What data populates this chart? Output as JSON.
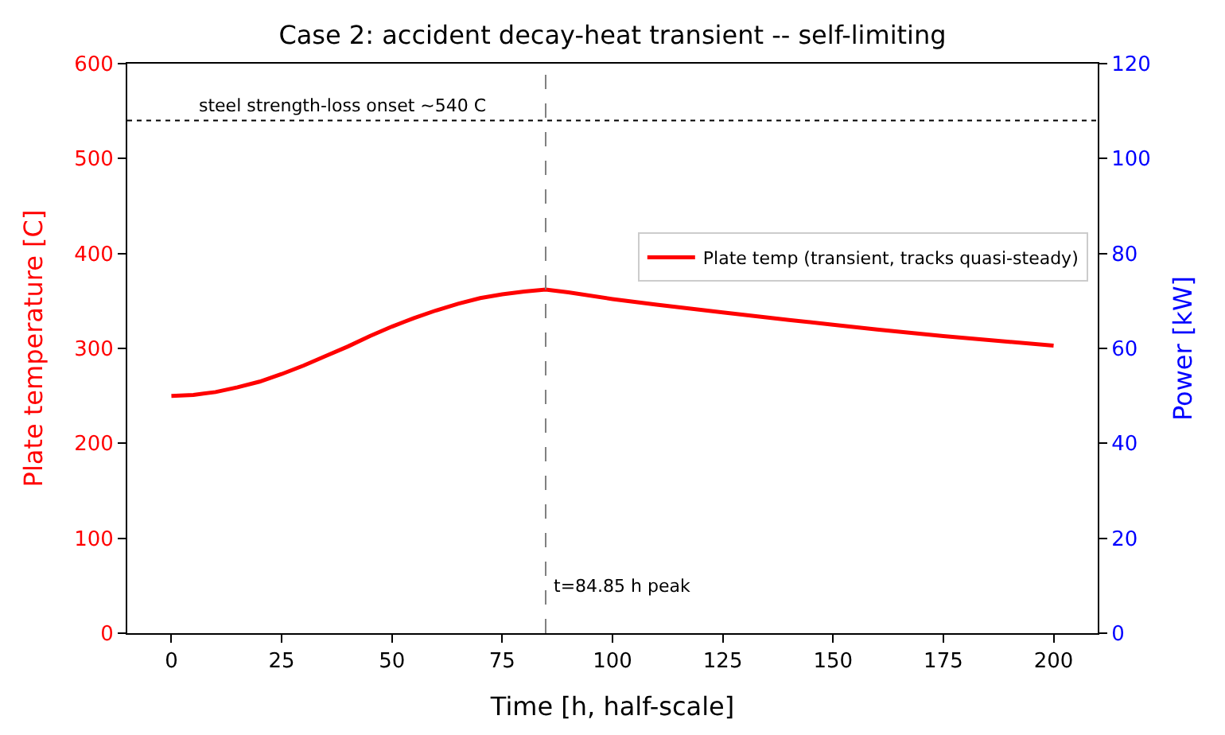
{
  "chart_data": {
    "type": "line",
    "title": "Case 2: accident decay-heat transient -- self-limiting",
    "xlabel": "Time [h, half-scale]",
    "ylabel": "Plate temperature [C]",
    "y2label": "Power [kW]",
    "x": [
      0,
      5,
      10,
      15,
      20,
      25,
      30,
      35,
      40,
      45,
      50,
      55,
      60,
      65,
      70,
      75,
      80,
      84.85,
      90,
      100,
      110,
      125,
      140,
      150,
      160,
      175,
      190,
      200
    ],
    "series": [
      {
        "name": "Plate temp (transient, tracks quasi-steady)",
        "color": "#ff0000",
        "values": [
          250,
          251,
          254,
          259,
          265,
          273,
          282,
          292,
          302,
          313,
          323,
          332,
          340,
          347,
          353,
          357,
          360,
          362,
          359,
          352,
          346,
          338,
          330,
          325,
          320,
          313,
          307,
          303
        ]
      }
    ],
    "xlim": [
      -10,
      210
    ],
    "xticks": [
      0,
      25,
      50,
      75,
      100,
      125,
      150,
      175,
      200
    ],
    "ylim": [
      0,
      600
    ],
    "yticks": [
      0,
      100,
      200,
      300,
      400,
      500,
      600
    ],
    "y2lim": [
      0,
      120
    ],
    "y2ticks": [
      0,
      20,
      40,
      60,
      80,
      100,
      120
    ],
    "ref_lines": [
      {
        "axis": "y",
        "value": 540,
        "color": "#000000",
        "line_style": "dotted",
        "label": "steel strength-loss onset ~540 C"
      },
      {
        "axis": "x",
        "value": 84.85,
        "color": "#808080",
        "line_style": "dashed"
      }
    ],
    "annotations": [
      {
        "text": "t=84.85 h peak",
        "x": 86,
        "y": 36
      }
    ],
    "legend": "right",
    "marker": "none",
    "line_style": "solid"
  }
}
